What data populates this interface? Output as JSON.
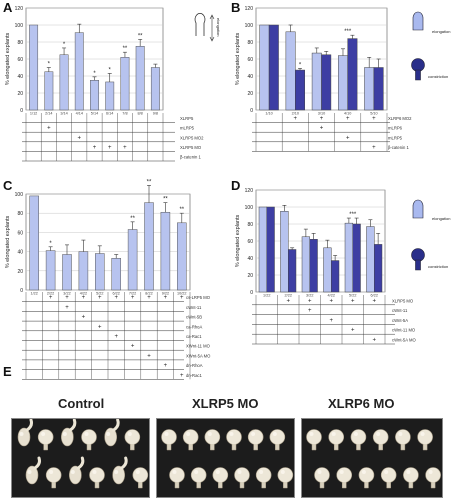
{
  "panels": {
    "A": {
      "letter": "A"
    },
    "B": {
      "letter": "B"
    },
    "C": {
      "letter": "C"
    },
    "D": {
      "letter": "D"
    },
    "E": {
      "letter": "E"
    }
  },
  "icons": {
    "A": {
      "arrow_label": "elongation"
    },
    "B": {
      "top_label": "elongation",
      "bottom_label": "constriction"
    },
    "D": {
      "top_label": "elongation",
      "bottom_label": "constriction"
    }
  },
  "photo_labels": [
    "Control",
    "XLRP5 MO",
    "XLRP6 MO"
  ],
  "colors": {
    "light": "#b7c3ef",
    "dark": "#3d3ea3",
    "icon_light": "#a9b9ef",
    "icon_dark": "#2a2f8a"
  },
  "chart_data": [
    {
      "type": "bar",
      "panel": "A",
      "ylabel": "% elongated explants",
      "ylim": [
        0,
        120
      ],
      "yticks": [
        0,
        20,
        40,
        60,
        80,
        100,
        120
      ],
      "categories": [
        "1",
        "2",
        "3",
        "4",
        "5",
        "6",
        "7",
        "8",
        "9"
      ],
      "x_tick_labels": [
        "1/12",
        "2/14",
        "3/14",
        "4/14",
        "5/14",
        "6/14",
        "7/8",
        "8/8",
        "9/8"
      ],
      "values": [
        100,
        45,
        65,
        91,
        35,
        33,
        62,
        75,
        50
      ],
      "errors": [
        0,
        5,
        8,
        10,
        4,
        10,
        6,
        8,
        4
      ],
      "annotations": [
        "",
        "*",
        "*",
        "",
        "*",
        "*",
        "**",
        "**",
        ""
      ],
      "bar_colors": [
        "light",
        "light",
        "light",
        "light",
        "light",
        "light",
        "light",
        "light",
        "light"
      ],
      "table_rows": [
        {
          "label": "XLRP5",
          "marks": [
            "",
            "",
            "",
            "",
            "",
            "",
            "",
            "",
            ""
          ]
        },
        {
          "label": "mLRP5",
          "marks": [
            "",
            "+",
            "",
            "",
            "",
            "",
            "",
            "",
            ""
          ]
        },
        {
          "label": "XLRP5 MO2",
          "marks": [
            "",
            "",
            "",
            "+",
            "",
            "",
            "",
            "",
            ""
          ]
        },
        {
          "label": "XLRP5 MO",
          "marks": [
            "",
            "",
            "",
            "",
            "+",
            "+",
            "+",
            "",
            ""
          ]
        },
        {
          "label": "β-catenin 1",
          "marks": [
            "",
            "",
            "",
            "",
            "",
            "",
            "",
            "",
            ""
          ]
        }
      ]
    },
    {
      "type": "bar",
      "panel": "B",
      "ylabel": "% elongated explants",
      "ylim": [
        0,
        120
      ],
      "yticks": [
        0,
        20,
        40,
        60,
        80,
        100,
        120
      ],
      "groups": [
        "1",
        "2",
        "3",
        "4",
        "5"
      ],
      "x_tick_labels": [
        "1/10",
        "2/10",
        "3/10",
        "4/10",
        "5/10"
      ],
      "series": [
        {
          "values": [
            100,
            92,
            67,
            64,
            50
          ],
          "errors": [
            0,
            8,
            6,
            8,
            12
          ]
        },
        {
          "values": [
            100,
            47,
            65,
            84,
            50
          ],
          "errors": [
            0,
            2,
            4,
            4,
            10
          ]
        }
      ],
      "annotations": [
        "",
        "*",
        "",
        "***",
        ""
      ],
      "table_rows": [
        {
          "label": "XLRP6 MO2",
          "marks": [
            "",
            "+",
            "+",
            "+",
            "+"
          ]
        },
        {
          "label": "mLRP6",
          "marks": [
            "",
            "",
            "+",
            "",
            ""
          ]
        },
        {
          "label": "mLRP5",
          "marks": [
            "",
            "",
            "",
            "+",
            ""
          ]
        },
        {
          "label": "β-catenin 1",
          "marks": [
            "",
            "",
            "",
            "",
            "+"
          ]
        }
      ]
    },
    {
      "type": "bar",
      "panel": "C",
      "ylabel": "% elongated explants",
      "ylim": [
        0,
        100
      ],
      "yticks": [
        0,
        20,
        40,
        60,
        80,
        100
      ],
      "categories": [
        "1",
        "2",
        "3",
        "4",
        "5",
        "6",
        "7",
        "8",
        "9",
        "10"
      ],
      "x_tick_labels": [
        "1/22",
        "2/22",
        "3/22",
        "4/22",
        "5/22",
        "6/22",
        "7/22",
        "8/22",
        "9/22",
        "10/22"
      ],
      "values": [
        98,
        41,
        37,
        40,
        38,
        33,
        63,
        91,
        81,
        70
      ],
      "errors": [
        0,
        4,
        10,
        12,
        8,
        4,
        8,
        18,
        10,
        10
      ],
      "annotations": [
        "",
        "*",
        "",
        "",
        "",
        "",
        "**",
        "**",
        "**",
        "**"
      ],
      "table_rows": [
        {
          "label": "cs-LRP5 MO",
          "marks": [
            "",
            "+",
            "+",
            "+",
            "+",
            "+",
            "+",
            "+",
            "+",
            "+"
          ]
        },
        {
          "label": "cWnt-11",
          "marks": [
            "",
            "",
            "+",
            "",
            "",
            "",
            "",
            "",
            "",
            ""
          ]
        },
        {
          "label": "cWnt-5B",
          "marks": [
            "",
            "",
            "",
            "+",
            "",
            "",
            "",
            "",
            "",
            ""
          ]
        },
        {
          "label": "ca-RhoA",
          "marks": [
            "",
            "",
            "",
            "",
            "+",
            "",
            "",
            "",
            "",
            ""
          ]
        },
        {
          "label": "ca-Rac1",
          "marks": [
            "",
            "",
            "",
            "",
            "",
            "+",
            "",
            "",
            "",
            ""
          ]
        },
        {
          "label": "XWnt-11 MO",
          "marks": [
            "",
            "",
            "",
            "",
            "",
            "",
            "+",
            "",
            "",
            ""
          ]
        },
        {
          "label": "XWnt-5A MO",
          "marks": [
            "",
            "",
            "",
            "",
            "",
            "",
            "",
            "+",
            "",
            ""
          ]
        },
        {
          "label": "dn-RhoA",
          "marks": [
            "",
            "",
            "",
            "",
            "",
            "",
            "",
            "",
            "+",
            ""
          ]
        },
        {
          "label": "dn-Rac1",
          "marks": [
            "",
            "",
            "",
            "",
            "",
            "",
            "",
            "",
            "",
            "+"
          ]
        }
      ]
    },
    {
      "type": "bar",
      "panel": "D",
      "ylabel": "% elongated explants",
      "ylim": [
        0,
        120
      ],
      "yticks": [
        0,
        20,
        40,
        60,
        80,
        100,
        120
      ],
      "groups": [
        "1",
        "2",
        "3",
        "4",
        "5",
        "6"
      ],
      "x_tick_labels": [
        "1/22",
        "2/22",
        "3/22",
        "4/22",
        "5/22",
        "6/22"
      ],
      "series": [
        {
          "values": [
            100,
            95,
            65,
            52,
            81,
            77
          ],
          "errors": [
            0,
            7,
            9,
            9,
            6,
            8
          ]
        },
        {
          "values": [
            100,
            50,
            62,
            37,
            80,
            56
          ],
          "errors": [
            0,
            2,
            7,
            6,
            7,
            13
          ]
        }
      ],
      "annotations": [
        "",
        "",
        "",
        "",
        "***",
        ""
      ],
      "table_rows": [
        {
          "label": "XLRP5 MO",
          "marks": [
            "",
            "+",
            "+",
            "+",
            "+",
            "+"
          ]
        },
        {
          "label": "cWnt-11",
          "marks": [
            "",
            "",
            "+",
            "",
            "",
            ""
          ]
        },
        {
          "label": "cWnt-5A",
          "marks": [
            "",
            "",
            "",
            "+",
            "",
            ""
          ]
        },
        {
          "label": "cWnt-11 MO",
          "marks": [
            "",
            "",
            "",
            "",
            "+",
            ""
          ]
        },
        {
          "label": "cWnt-5A MO",
          "marks": [
            "",
            "",
            "",
            "",
            "",
            "+"
          ]
        }
      ]
    }
  ]
}
